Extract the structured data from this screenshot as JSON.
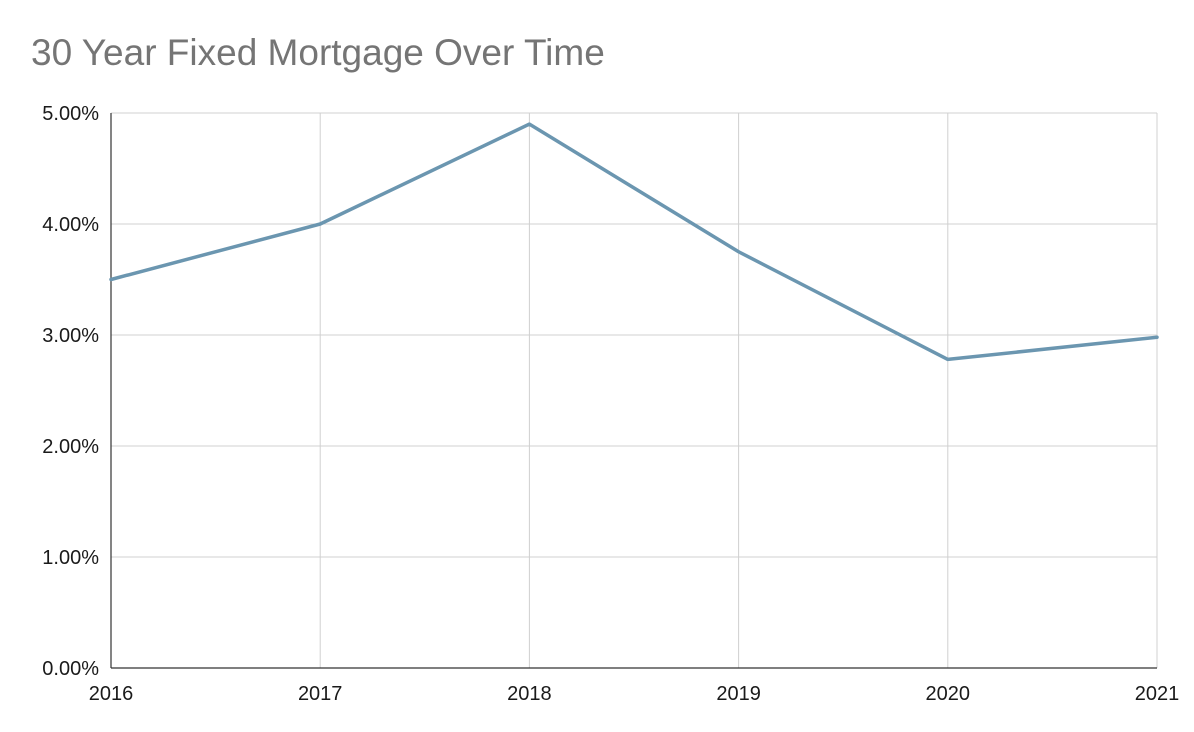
{
  "chart_data": {
    "type": "line",
    "title": "30 Year Fixed Mortgage Over Time",
    "xlabel": "",
    "ylabel": "",
    "x": [
      "2016",
      "2017",
      "2018",
      "2019",
      "2020",
      "2021"
    ],
    "series": [
      {
        "values": [
          3.5,
          4.0,
          4.9,
          3.75,
          2.78,
          2.98
        ]
      }
    ],
    "ylim": [
      0,
      5
    ],
    "yticks": [
      0,
      1,
      2,
      3,
      4,
      5
    ],
    "ytick_labels": [
      "0.00%",
      "1.00%",
      "2.00%",
      "3.00%",
      "4.00%",
      "5.00%"
    ],
    "grid": true,
    "legend": "none",
    "colors": {
      "series": "#6b96b0",
      "grid": "#d0d0d0",
      "axis": "#333333",
      "title": "#757575"
    }
  }
}
